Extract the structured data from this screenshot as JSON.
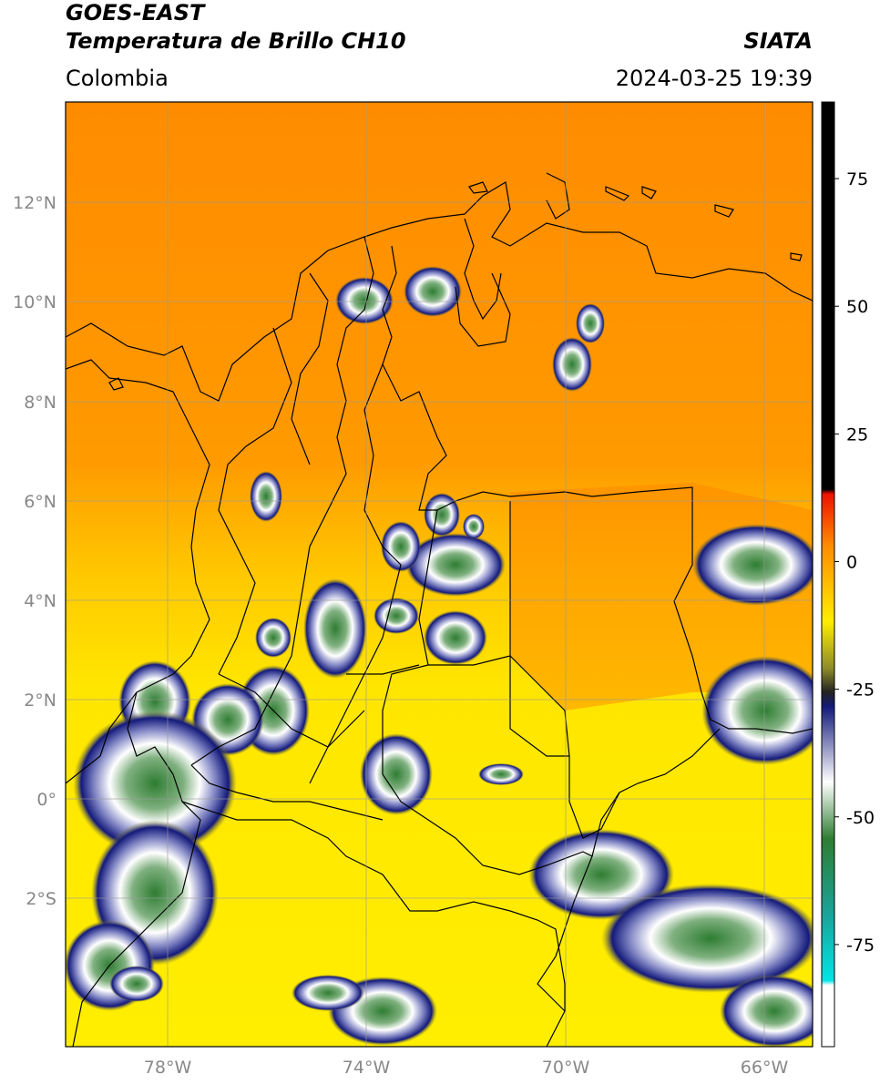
{
  "header": {
    "title_line1": "GOES-EAST",
    "title_line2": "Temperatura de Brillo CH10",
    "organization": "SIATA",
    "region": "Colombia",
    "datetime": "2024-03-25 19:39"
  },
  "map": {
    "lat_ticks": [
      "12°N",
      "10°N",
      "8°N",
      "6°N",
      "4°N",
      "2°N",
      "0°",
      "2°S"
    ],
    "lon_ticks": [
      "78°W",
      "74°W",
      "70°W",
      "66°W"
    ],
    "lon_range": [
      -80,
      -65
    ],
    "lat_range": [
      -5,
      14
    ]
  },
  "colorbar": {
    "ticks": [
      "75",
      "50",
      "25",
      "0",
      "-25",
      "-50",
      "-75"
    ],
    "tick_values": [
      75,
      50,
      25,
      0,
      -25,
      -50,
      -75
    ],
    "range": [
      -95,
      90
    ],
    "colors": {
      "hot": "#000000",
      "red": "#ee1100",
      "orange": "#ff8c00",
      "yellow": "#ffee00",
      "olive": "#8c8a2a",
      "navy": "#141a7a",
      "white": "#ffffff",
      "green": "#2e7d32",
      "teal": "#1aa39a",
      "cyan": "#00e5e5"
    }
  }
}
